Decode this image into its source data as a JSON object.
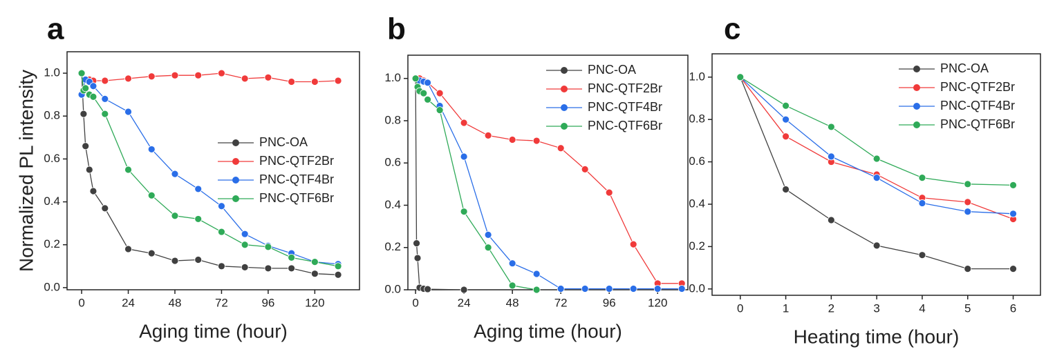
{
  "chart_data": [
    {
      "type": "line",
      "label": "a",
      "xlabel": "Aging time (hour)",
      "ylabel": "Normalized PL intensity",
      "xlim": [
        -7.5,
        143
      ],
      "xticks": [
        0,
        24,
        48,
        72,
        96,
        120
      ],
      "ylim": [
        -0.01,
        1.1
      ],
      "yticks": [
        {
          "value": 0,
          "label": "0.0"
        },
        0.2,
        0.4,
        0.6,
        0.8,
        {
          "value": 1,
          "label": "1.0"
        }
      ],
      "legend": "center right",
      "series": [
        {
          "name": "PNC-OA",
          "color": "#404040",
          "x": [
            0,
            1,
            2,
            4,
            6,
            12,
            24,
            36,
            48,
            60,
            72,
            84,
            96,
            108,
            120,
            132
          ],
          "values": [
            1.0,
            0.81,
            0.66,
            0.55,
            0.45,
            0.37,
            0.18,
            0.16,
            0.125,
            0.13,
            0.1,
            0.095,
            0.09,
            0.09,
            0.065,
            0.06
          ]
        },
        {
          "name": "PNC-QTF2Br",
          "color": "#f03a3a",
          "x": [
            0,
            2,
            4,
            6,
            12,
            24,
            36,
            48,
            60,
            72,
            84,
            96,
            108,
            120,
            132
          ],
          "values": [
            1.0,
            0.97,
            0.97,
            0.965,
            0.965,
            0.975,
            0.985,
            0.99,
            0.99,
            1.0,
            0.975,
            0.98,
            0.96,
            0.96,
            0.965
          ]
        },
        {
          "name": "PNC-QTF4Br",
          "color": "#2a6ee8",
          "x": [
            0,
            2,
            4,
            6,
            12,
            24,
            36,
            48,
            60,
            72,
            84,
            96,
            108,
            120,
            132
          ],
          "values": [
            0.9,
            0.97,
            0.96,
            0.94,
            0.88,
            0.82,
            0.645,
            0.53,
            0.46,
            0.38,
            0.25,
            0.195,
            0.16,
            0.12,
            0.11
          ]
        },
        {
          "name": "PNC-QTF6Br",
          "color": "#2faa58",
          "x": [
            0,
            1,
            2,
            4,
            6,
            12,
            24,
            36,
            48,
            60,
            72,
            84,
            96,
            108,
            120,
            132
          ],
          "values": [
            1.0,
            0.92,
            0.93,
            0.9,
            0.89,
            0.81,
            0.55,
            0.43,
            0.335,
            0.32,
            0.26,
            0.2,
            0.19,
            0.14,
            0.12,
            0.1
          ]
        }
      ]
    },
    {
      "type": "line",
      "label": "b",
      "xlabel": "Aging time (hour)",
      "xlim": [
        -3.8,
        135
      ],
      "xticks": [
        0,
        24,
        48,
        72,
        96,
        120
      ],
      "ylim": [
        0,
        1.11
      ],
      "yticks": [
        {
          "value": 0,
          "label": "0.0"
        },
        0.2,
        0.4,
        0.6,
        0.8,
        {
          "value": 1,
          "label": "1.0"
        }
      ],
      "legend": "upper right",
      "series": [
        {
          "name": "PNC-OA",
          "color": "#404040",
          "x": [
            0,
            0.5,
            1,
            2,
            4,
            6,
            24
          ],
          "values": [
            1.0,
            0.22,
            0.15,
            0.01,
            0.005,
            0.003,
            0.0
          ]
        },
        {
          "name": "PNC-QTF2Br",
          "color": "#f03a3a",
          "x": [
            0,
            2,
            4,
            6,
            12,
            24,
            36,
            48,
            60,
            72,
            84,
            96,
            108,
            120,
            132
          ],
          "values": [
            1.0,
            1.0,
            0.99,
            0.98,
            0.93,
            0.79,
            0.73,
            0.71,
            0.705,
            0.67,
            0.57,
            0.46,
            0.215,
            0.03,
            0.03
          ]
        },
        {
          "name": "PNC-QTF4Br",
          "color": "#2a6ee8",
          "x": [
            0,
            2,
            4,
            6,
            12,
            24,
            36,
            48,
            60,
            72,
            84,
            96,
            108,
            120,
            132
          ],
          "values": [
            1.0,
            0.99,
            0.985,
            0.98,
            0.87,
            0.63,
            0.26,
            0.125,
            0.075,
            0.005,
            0.005,
            0.005,
            0.005,
            0.005,
            0.005
          ]
        },
        {
          "name": "PNC-QTF6Br",
          "color": "#2faa58",
          "x": [
            0,
            1,
            2,
            4,
            6,
            12,
            24,
            36,
            48,
            60
          ],
          "values": [
            1.0,
            0.96,
            0.94,
            0.93,
            0.9,
            0.85,
            0.37,
            0.2,
            0.02,
            0.0
          ]
        }
      ]
    },
    {
      "type": "line",
      "label": "c",
      "xlabel": "Heating time (hour)",
      "xlim": [
        -0.62,
        6.6
      ],
      "xticks": [
        0,
        1,
        2,
        3,
        4,
        5,
        6
      ],
      "ylim": [
        -0.03,
        1.11
      ],
      "yticks": [
        {
          "value": 0,
          "label": "0.0"
        },
        0.2,
        0.4,
        0.6,
        0.8,
        {
          "value": 1,
          "label": "1.0"
        }
      ],
      "legend": "upper right",
      "series": [
        {
          "name": "PNC-OA",
          "color": "#404040",
          "x": [
            0,
            1,
            2,
            3,
            4,
            5,
            6
          ],
          "values": [
            1.0,
            0.47,
            0.325,
            0.205,
            0.16,
            0.095,
            0.095
          ]
        },
        {
          "name": "PNC-QTF2Br",
          "color": "#f03a3a",
          "x": [
            0,
            1,
            2,
            3,
            4,
            5,
            6
          ],
          "values": [
            1.0,
            0.72,
            0.6,
            0.54,
            0.43,
            0.41,
            0.33
          ]
        },
        {
          "name": "PNC-QTF4Br",
          "color": "#2a6ee8",
          "x": [
            0,
            1,
            2,
            3,
            4,
            5,
            6
          ],
          "values": [
            1.0,
            0.8,
            0.625,
            0.525,
            0.405,
            0.365,
            0.355
          ]
        },
        {
          "name": "PNC-QTF6Br",
          "color": "#2faa58",
          "x": [
            0,
            1,
            2,
            3,
            4,
            5,
            6
          ],
          "values": [
            1.0,
            0.865,
            0.765,
            0.615,
            0.525,
            0.495,
            0.49
          ]
        }
      ]
    }
  ]
}
